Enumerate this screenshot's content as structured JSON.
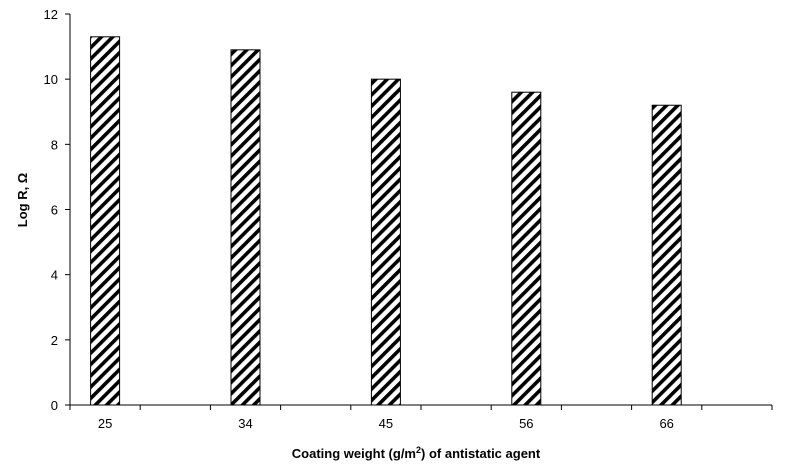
{
  "chart_data": {
    "type": "bar",
    "title": "",
    "categories": [
      "25",
      "34",
      "45",
      "56",
      "66"
    ],
    "values": [
      11.3,
      10.9,
      10.0,
      9.6,
      9.2
    ],
    "xlabel": {
      "prefix": "Coating weight (g/m",
      "superscript": "2",
      "suffix": ") of antistatic agent"
    },
    "ylabel": "Log R, Ω",
    "ylim": [
      0,
      12
    ],
    "yticks": [
      "0",
      "2",
      "4",
      "6",
      "8",
      "10",
      "12"
    ],
    "grid": false,
    "bar_fill": "diagonal-hatch",
    "colors": {
      "bar_stroke": "#000000",
      "axis": "#000000",
      "background": "#ffffff"
    }
  }
}
